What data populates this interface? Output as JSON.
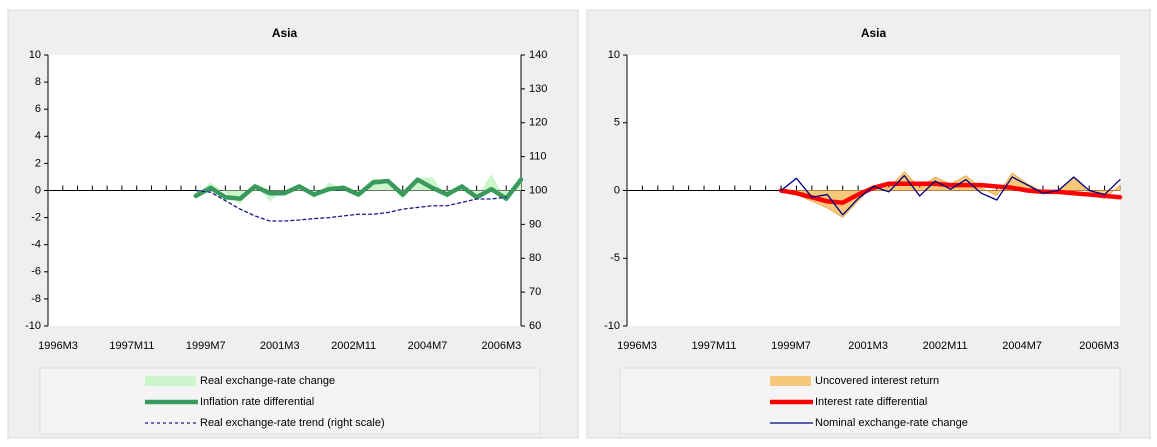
{
  "chart_data": [
    {
      "type": "line",
      "title": "Asia",
      "categories": [
        "1996M3",
        null,
        null,
        null,
        null,
        "1997M11",
        null,
        null,
        null,
        null,
        "1999M7",
        null,
        null,
        null,
        null,
        "2001M3",
        null,
        null,
        null,
        null,
        "2002M11",
        null,
        null,
        null,
        null,
        "2004M7",
        null,
        null,
        null,
        null,
        "2006M3",
        null,
        null
      ],
      "series": [
        {
          "name": "Real exchange-rate change",
          "kind": "area",
          "color": "#ccf5cc",
          "values": [
            null,
            null,
            null,
            null,
            null,
            null,
            null,
            null,
            null,
            null,
            -0.3,
            0.6,
            -0.2,
            -1.0,
            0.5,
            -0.8,
            0.0,
            0.4,
            -0.6,
            0.6,
            0.1,
            -0.5,
            0.9,
            0.7,
            -0.7,
            0.9,
            1.0,
            -0.6,
            0.4,
            -0.5,
            1.2,
            -0.8,
            0.6
          ]
        },
        {
          "name": "Inflation rate differential",
          "kind": "thick",
          "color": "#3a9a5c",
          "values": [
            null,
            null,
            null,
            null,
            null,
            null,
            null,
            null,
            null,
            null,
            -0.4,
            0.2,
            -0.5,
            -0.6,
            0.3,
            -0.2,
            -0.2,
            0.3,
            -0.3,
            0.1,
            0.2,
            -0.3,
            0.6,
            0.7,
            -0.3,
            0.8,
            0.2,
            -0.3,
            0.3,
            -0.5,
            0.1,
            -0.6,
            0.8
          ]
        },
        {
          "name": "Real exchange-rate trend (right scale)",
          "kind": "dashed",
          "color": "#1a1a8c",
          "axis": "y2",
          "values": [
            null,
            null,
            null,
            null,
            null,
            null,
            null,
            null,
            null,
            null,
            100,
            99.5,
            97,
            94.5,
            92.5,
            91,
            91,
            91.3,
            91.7,
            92,
            92.5,
            93,
            93,
            93.5,
            94.5,
            95,
            95.5,
            95.5,
            96.5,
            97.5,
            97.5,
            98,
            null
          ]
        }
      ],
      "ylim": [
        -10,
        10
      ],
      "yticks": [
        -10,
        -8,
        -6,
        -4,
        -2,
        0,
        2,
        4,
        6,
        8,
        10
      ],
      "y2lim": [
        60,
        140
      ],
      "y2ticks": [
        60,
        70,
        80,
        90,
        100,
        110,
        120,
        130,
        140
      ]
    },
    {
      "type": "line",
      "title": "Asia",
      "categories": [
        "1996M3",
        null,
        null,
        null,
        null,
        "1997M11",
        null,
        null,
        null,
        null,
        "1999M7",
        null,
        null,
        null,
        null,
        "2001M3",
        null,
        null,
        null,
        null,
        "2002M11",
        null,
        null,
        null,
        null,
        "2004M7",
        null,
        null,
        null,
        null,
        "2006M3",
        null,
        null
      ],
      "series": [
        {
          "name": "Uncovered interest return",
          "kind": "area",
          "color": "#f7c87a",
          "values": [
            null,
            null,
            null,
            null,
            null,
            null,
            null,
            null,
            null,
            null,
            0,
            -0.3,
            -0.8,
            -1.3,
            -2.0,
            -0.8,
            0.4,
            0.2,
            1.4,
            0.2,
            1.0,
            0.5,
            1.1,
            0.2,
            -0.4,
            1.3,
            0.5,
            -0.1,
            0.0,
            1.0,
            -0.2,
            -0.6,
            0.4
          ]
        },
        {
          "name": "Interest rate differential",
          "kind": "thick",
          "color": "#ff0000",
          "values": [
            null,
            null,
            null,
            null,
            null,
            null,
            null,
            null,
            null,
            null,
            0,
            -0.2,
            -0.5,
            -0.8,
            -0.9,
            -0.3,
            0.2,
            0.5,
            0.5,
            0.5,
            0.5,
            0.4,
            0.4,
            0.4,
            0.3,
            0.2,
            0.0,
            -0.1,
            -0.1,
            -0.2,
            -0.3,
            -0.4,
            -0.5
          ]
        },
        {
          "name": "Nominal exchange-rate change",
          "kind": "thin",
          "color": "#000080",
          "values": [
            null,
            null,
            null,
            null,
            null,
            null,
            null,
            null,
            null,
            null,
            0,
            0.9,
            -0.5,
            -0.3,
            -1.8,
            -0.6,
            0.3,
            -0.1,
            1.1,
            -0.4,
            0.7,
            0.1,
            0.8,
            -0.2,
            -0.7,
            1.0,
            0.4,
            -0.2,
            0.0,
            1.0,
            0.0,
            -0.3,
            0.8
          ]
        }
      ],
      "ylim": [
        -10,
        10
      ],
      "yticks": [
        -10,
        -5,
        0,
        5,
        10
      ]
    }
  ]
}
